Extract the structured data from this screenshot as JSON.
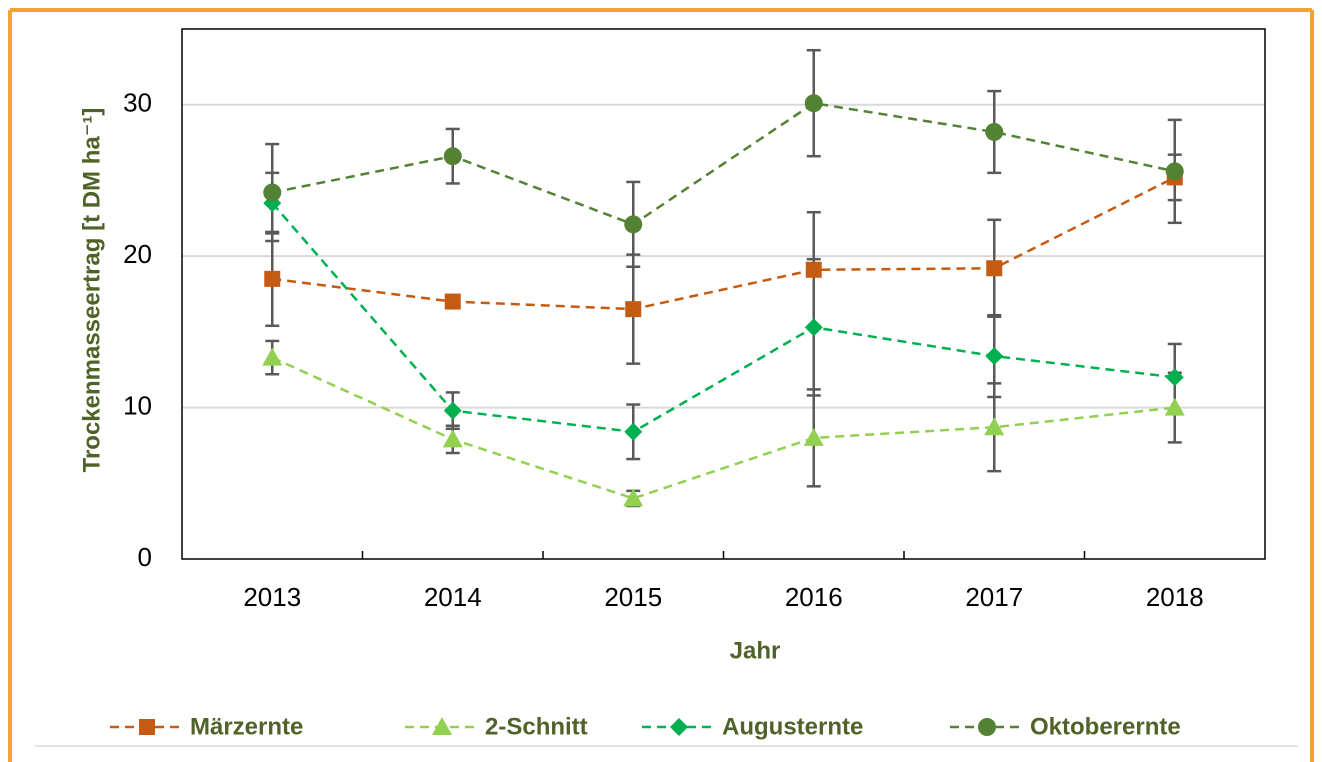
{
  "chart_data": {
    "type": "line",
    "x_label": "Jahr",
    "y_label": "Trockenmasseertrag [t DM ha⁻¹]",
    "categories": [
      "2013",
      "2014",
      "2015",
      "2016",
      "2017",
      "2018"
    ],
    "ylim": [
      0,
      35
    ],
    "yticks": [
      0,
      10,
      20,
      30
    ],
    "grid": true,
    "legend": "bottom",
    "series": [
      {
        "name": "Märzernte",
        "color": "#c55a11",
        "marker": "square",
        "values": [
          18.5,
          17.0,
          16.5,
          19.1,
          19.2,
          25.2
        ],
        "errors": [
          3.1,
          0.4,
          3.6,
          3.8,
          3.2,
          1.5
        ]
      },
      {
        "name": "2-Schnitt",
        "color": "#92d050",
        "marker": "triangle",
        "values": [
          13.3,
          7.9,
          4.0,
          8.0,
          8.7,
          10.0
        ],
        "errors": [
          1.1,
          0.9,
          0.5,
          3.2,
          2.9,
          2.3
        ]
      },
      {
        "name": "Augusternte",
        "color": "#00b050",
        "marker": "diamond",
        "values": [
          23.5,
          9.8,
          8.4,
          15.3,
          13.4,
          12.0
        ],
        "errors": [
          2.0,
          1.2,
          1.8,
          4.5,
          2.7,
          2.2
        ]
      },
      {
        "name": "Oktoberernte",
        "color": "#548235",
        "marker": "circle",
        "values": [
          24.2,
          26.6,
          22.1,
          30.1,
          28.2,
          25.6
        ],
        "errors": [
          3.2,
          1.8,
          2.8,
          3.5,
          2.7,
          3.4
        ]
      }
    ]
  }
}
